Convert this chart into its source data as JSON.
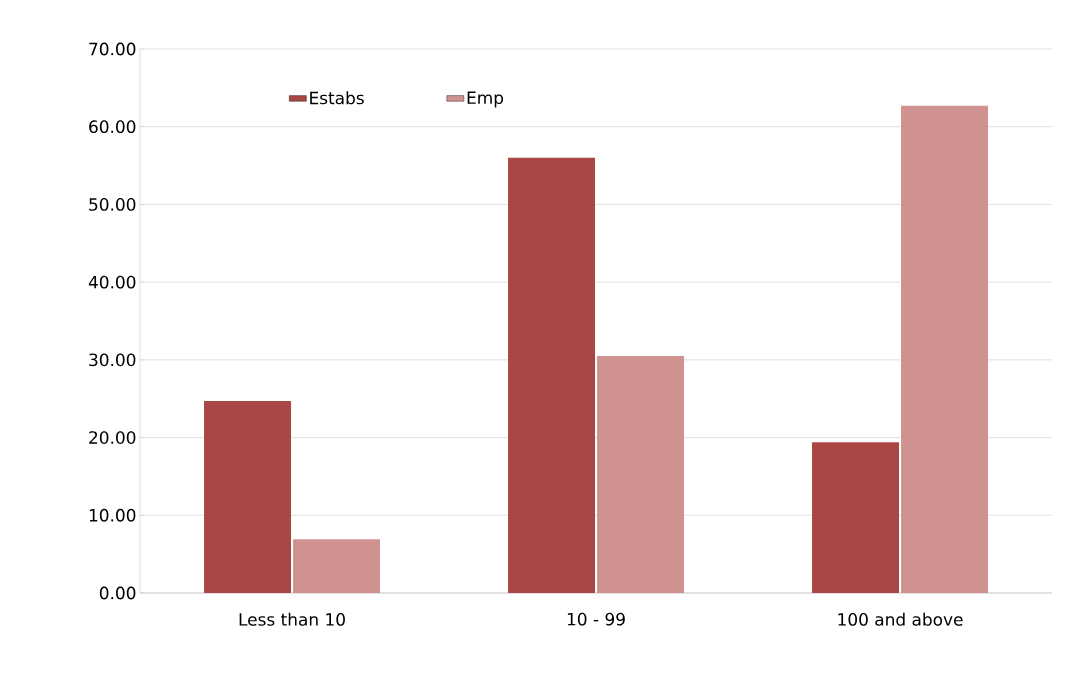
{
  "chart_data": {
    "type": "bar",
    "categories": [
      "Less than 10",
      "10 - 99",
      "100 and above"
    ],
    "series": [
      {
        "name": "Estabs",
        "color": "#a94744",
        "values": [
          24.7,
          56.0,
          19.4
        ]
      },
      {
        "name": "Emp",
        "color": "#d09290",
        "values": [
          6.9,
          30.5,
          62.7
        ]
      }
    ],
    "ylim": [
      0,
      70
    ],
    "yticks": [
      {
        "value": 0,
        "label": "0.00"
      },
      {
        "value": 10,
        "label": "10.00"
      },
      {
        "value": 20,
        "label": "20.00"
      },
      {
        "value": 30,
        "label": "30.00"
      },
      {
        "value": 40,
        "label": "40.00"
      },
      {
        "value": 50,
        "label": "50.00"
      },
      {
        "value": 60,
        "label": "60.00"
      },
      {
        "value": 70,
        "label": "70.00"
      }
    ],
    "grid": "y",
    "legend": "top left"
  }
}
